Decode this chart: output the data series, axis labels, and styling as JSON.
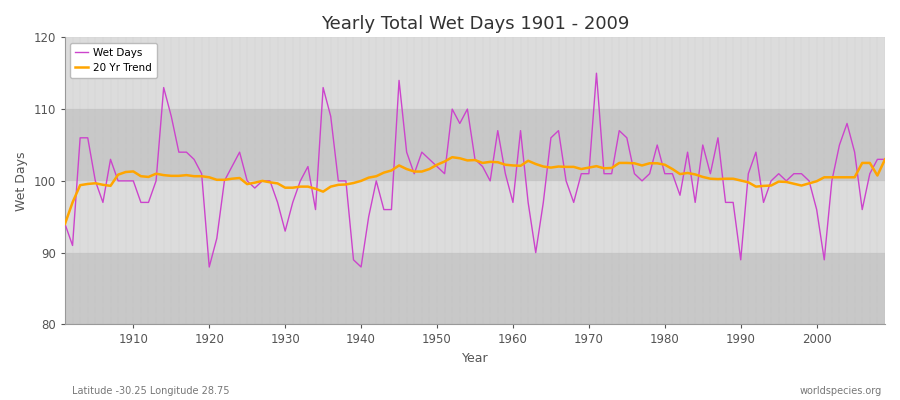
{
  "title": "Yearly Total Wet Days 1901 - 2009",
  "xlabel": "Year",
  "ylabel": "Wet Days",
  "subtitle": "Latitude -30.25 Longitude 28.75",
  "watermark": "worldspecies.org",
  "ylim": [
    80,
    120
  ],
  "xlim": [
    1901,
    2009
  ],
  "yticks": [
    80,
    90,
    100,
    110,
    120
  ],
  "xticks": [
    1910,
    1920,
    1930,
    1940,
    1950,
    1960,
    1970,
    1980,
    1990,
    2000
  ],
  "wet_days_color": "#CC44CC",
  "trend_color": "#FFA500",
  "bg_band_light": "#DCDCDC",
  "bg_band_dark": "#C8C8C8",
  "legend_wet_days": "Wet Days",
  "legend_trend": "20 Yr Trend",
  "years": [
    1901,
    1902,
    1903,
    1904,
    1905,
    1906,
    1907,
    1908,
    1909,
    1910,
    1911,
    1912,
    1913,
    1914,
    1915,
    1916,
    1917,
    1918,
    1919,
    1920,
    1921,
    1922,
    1923,
    1924,
    1925,
    1926,
    1927,
    1928,
    1929,
    1930,
    1931,
    1932,
    1933,
    1934,
    1935,
    1936,
    1937,
    1938,
    1939,
    1940,
    1941,
    1942,
    1943,
    1944,
    1945,
    1946,
    1947,
    1948,
    1949,
    1950,
    1951,
    1952,
    1953,
    1954,
    1955,
    1956,
    1957,
    1958,
    1959,
    1960,
    1961,
    1962,
    1963,
    1964,
    1965,
    1966,
    1967,
    1968,
    1969,
    1970,
    1971,
    1972,
    1973,
    1974,
    1975,
    1976,
    1977,
    1978,
    1979,
    1980,
    1981,
    1982,
    1983,
    1984,
    1985,
    1986,
    1987,
    1988,
    1989,
    1990,
    1991,
    1992,
    1993,
    1994,
    1995,
    1996,
    1997,
    1998,
    1999,
    2000,
    2001,
    2002,
    2003,
    2004,
    2005,
    2006,
    2007,
    2008,
    2009
  ],
  "wet_days": [
    94,
    91,
    106,
    106,
    100,
    97,
    103,
    100,
    100,
    100,
    97,
    97,
    100,
    113,
    109,
    104,
    104,
    103,
    101,
    88,
    92,
    100,
    102,
    104,
    100,
    99,
    100,
    100,
    97,
    93,
    97,
    100,
    102,
    96,
    113,
    109,
    100,
    100,
    89,
    88,
    95,
    100,
    96,
    96,
    114,
    104,
    101,
    104,
    103,
    102,
    101,
    110,
    108,
    110,
    103,
    102,
    100,
    107,
    101,
    97,
    107,
    97,
    90,
    97,
    106,
    107,
    100,
    97,
    101,
    101,
    115,
    101,
    101,
    107,
    106,
    101,
    100,
    101,
    105,
    101,
    101,
    98,
    104,
    97,
    105,
    101,
    106,
    97,
    97,
    89,
    101,
    104,
    97,
    100,
    101,
    100,
    101,
    101,
    100,
    96,
    89,
    100,
    105,
    108,
    104,
    96,
    101,
    103,
    103
  ]
}
